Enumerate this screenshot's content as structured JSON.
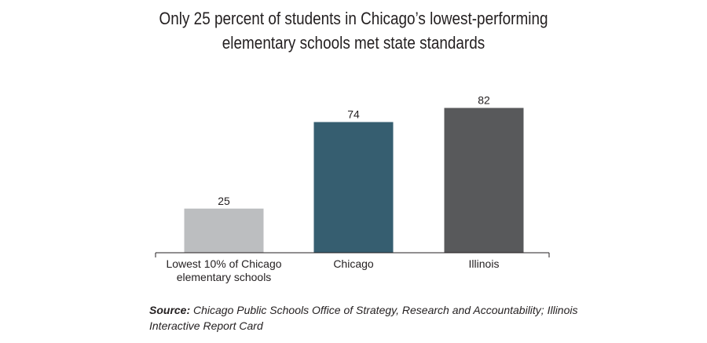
{
  "chart_data": {
    "type": "bar",
    "title_lines": [
      "Only 25 percent of students in Chicago’s lowest-performing",
      "elementary schools met state standards"
    ],
    "categories": [
      [
        "Lowest 10% of Chicago",
        "elementary schools"
      ],
      [
        "Chicago"
      ],
      [
        "Illinois"
      ]
    ],
    "values": [
      25,
      74,
      82
    ],
    "data_labels": [
      "25",
      "74",
      "82"
    ],
    "colors": [
      "#bcbec0",
      "#365e70",
      "#58595b"
    ],
    "ylim": [
      0,
      100
    ],
    "xlabel": "",
    "ylabel": "",
    "grid": false,
    "legend": "none"
  },
  "source": {
    "label": "Source:",
    "text": "Chicago Public Schools Office of Strategy, Research and Accountability; Illinois Interactive Report Card"
  }
}
